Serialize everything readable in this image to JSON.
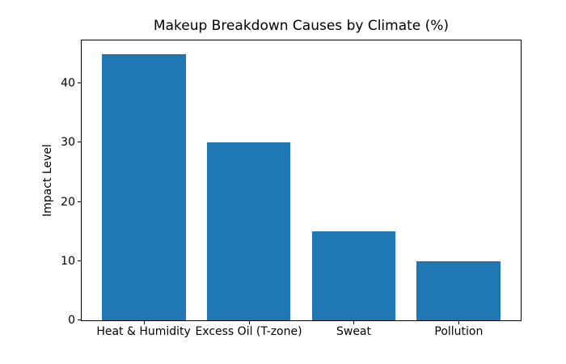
{
  "chart_data": {
    "type": "bar",
    "title": "Makeup Breakdown Causes by Climate (%)",
    "categories": [
      "Heat & Humidity",
      "Excess Oil (T-zone)",
      "Sweat",
      "Pollution"
    ],
    "values": [
      45,
      30,
      15,
      10
    ],
    "xlabel": "",
    "ylabel": "Impact Level",
    "ylim": [
      0,
      47.25
    ],
    "yticks": [
      0,
      10,
      20,
      30,
      40
    ],
    "bar_color": "#1f77b4",
    "axis_color": "#000000",
    "text_color": "#000000",
    "background": "#ffffff",
    "grid": false,
    "legend_position": "none"
  }
}
